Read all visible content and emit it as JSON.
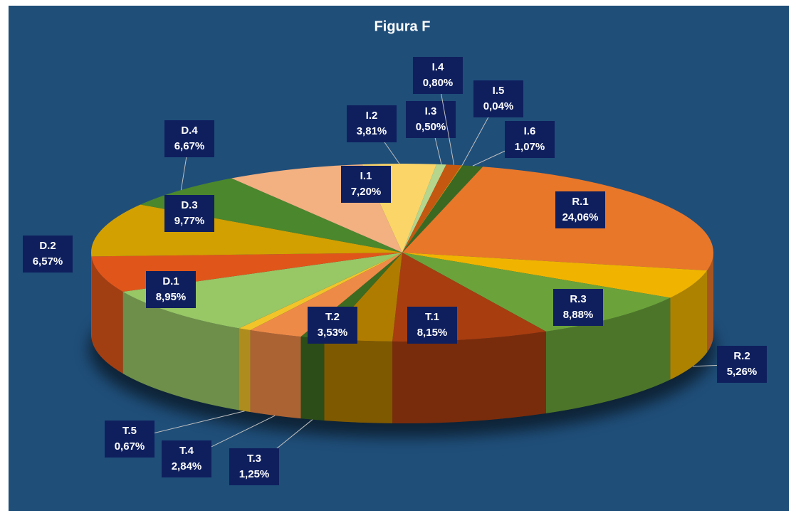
{
  "chart_data": {
    "type": "pie",
    "title": "Figura F",
    "categories": [
      "R.1",
      "R.2",
      "R.3",
      "T.1",
      "T.2",
      "T.3",
      "T.4",
      "T.5",
      "D.1",
      "D.2",
      "D.3",
      "D.4",
      "I.1",
      "I.2",
      "I.3",
      "I.4",
      "I.5",
      "I.6"
    ],
    "values": [
      24.06,
      5.26,
      8.88,
      8.15,
      3.53,
      1.25,
      2.84,
      0.67,
      8.95,
      6.57,
      9.77,
      6.67,
      7.2,
      3.81,
      0.5,
      0.8,
      0.04,
      1.07
    ],
    "value_labels": [
      "24,06%",
      "5,26%",
      "8,88%",
      "8,15%",
      "3,53%",
      "1,25%",
      "2,84%",
      "0,67%",
      "8,95%",
      "6,57%",
      "9,77%",
      "6,67%",
      "7,20%",
      "3,81%",
      "0,50%",
      "0,80%",
      "0,04%",
      "1,07%"
    ],
    "colors": [
      "#e8772a",
      "#f0b400",
      "#6ba33a",
      "#a83d10",
      "#b07c00",
      "#3d6b20",
      "#ee8a48",
      "#f2c42a",
      "#98c766",
      "#e0561a",
      "#d2a000",
      "#4b872c",
      "#f3b080",
      "#fbd568",
      "#b5d68c",
      "#c45810",
      "#e4a600",
      "#3b6922"
    ]
  }
}
